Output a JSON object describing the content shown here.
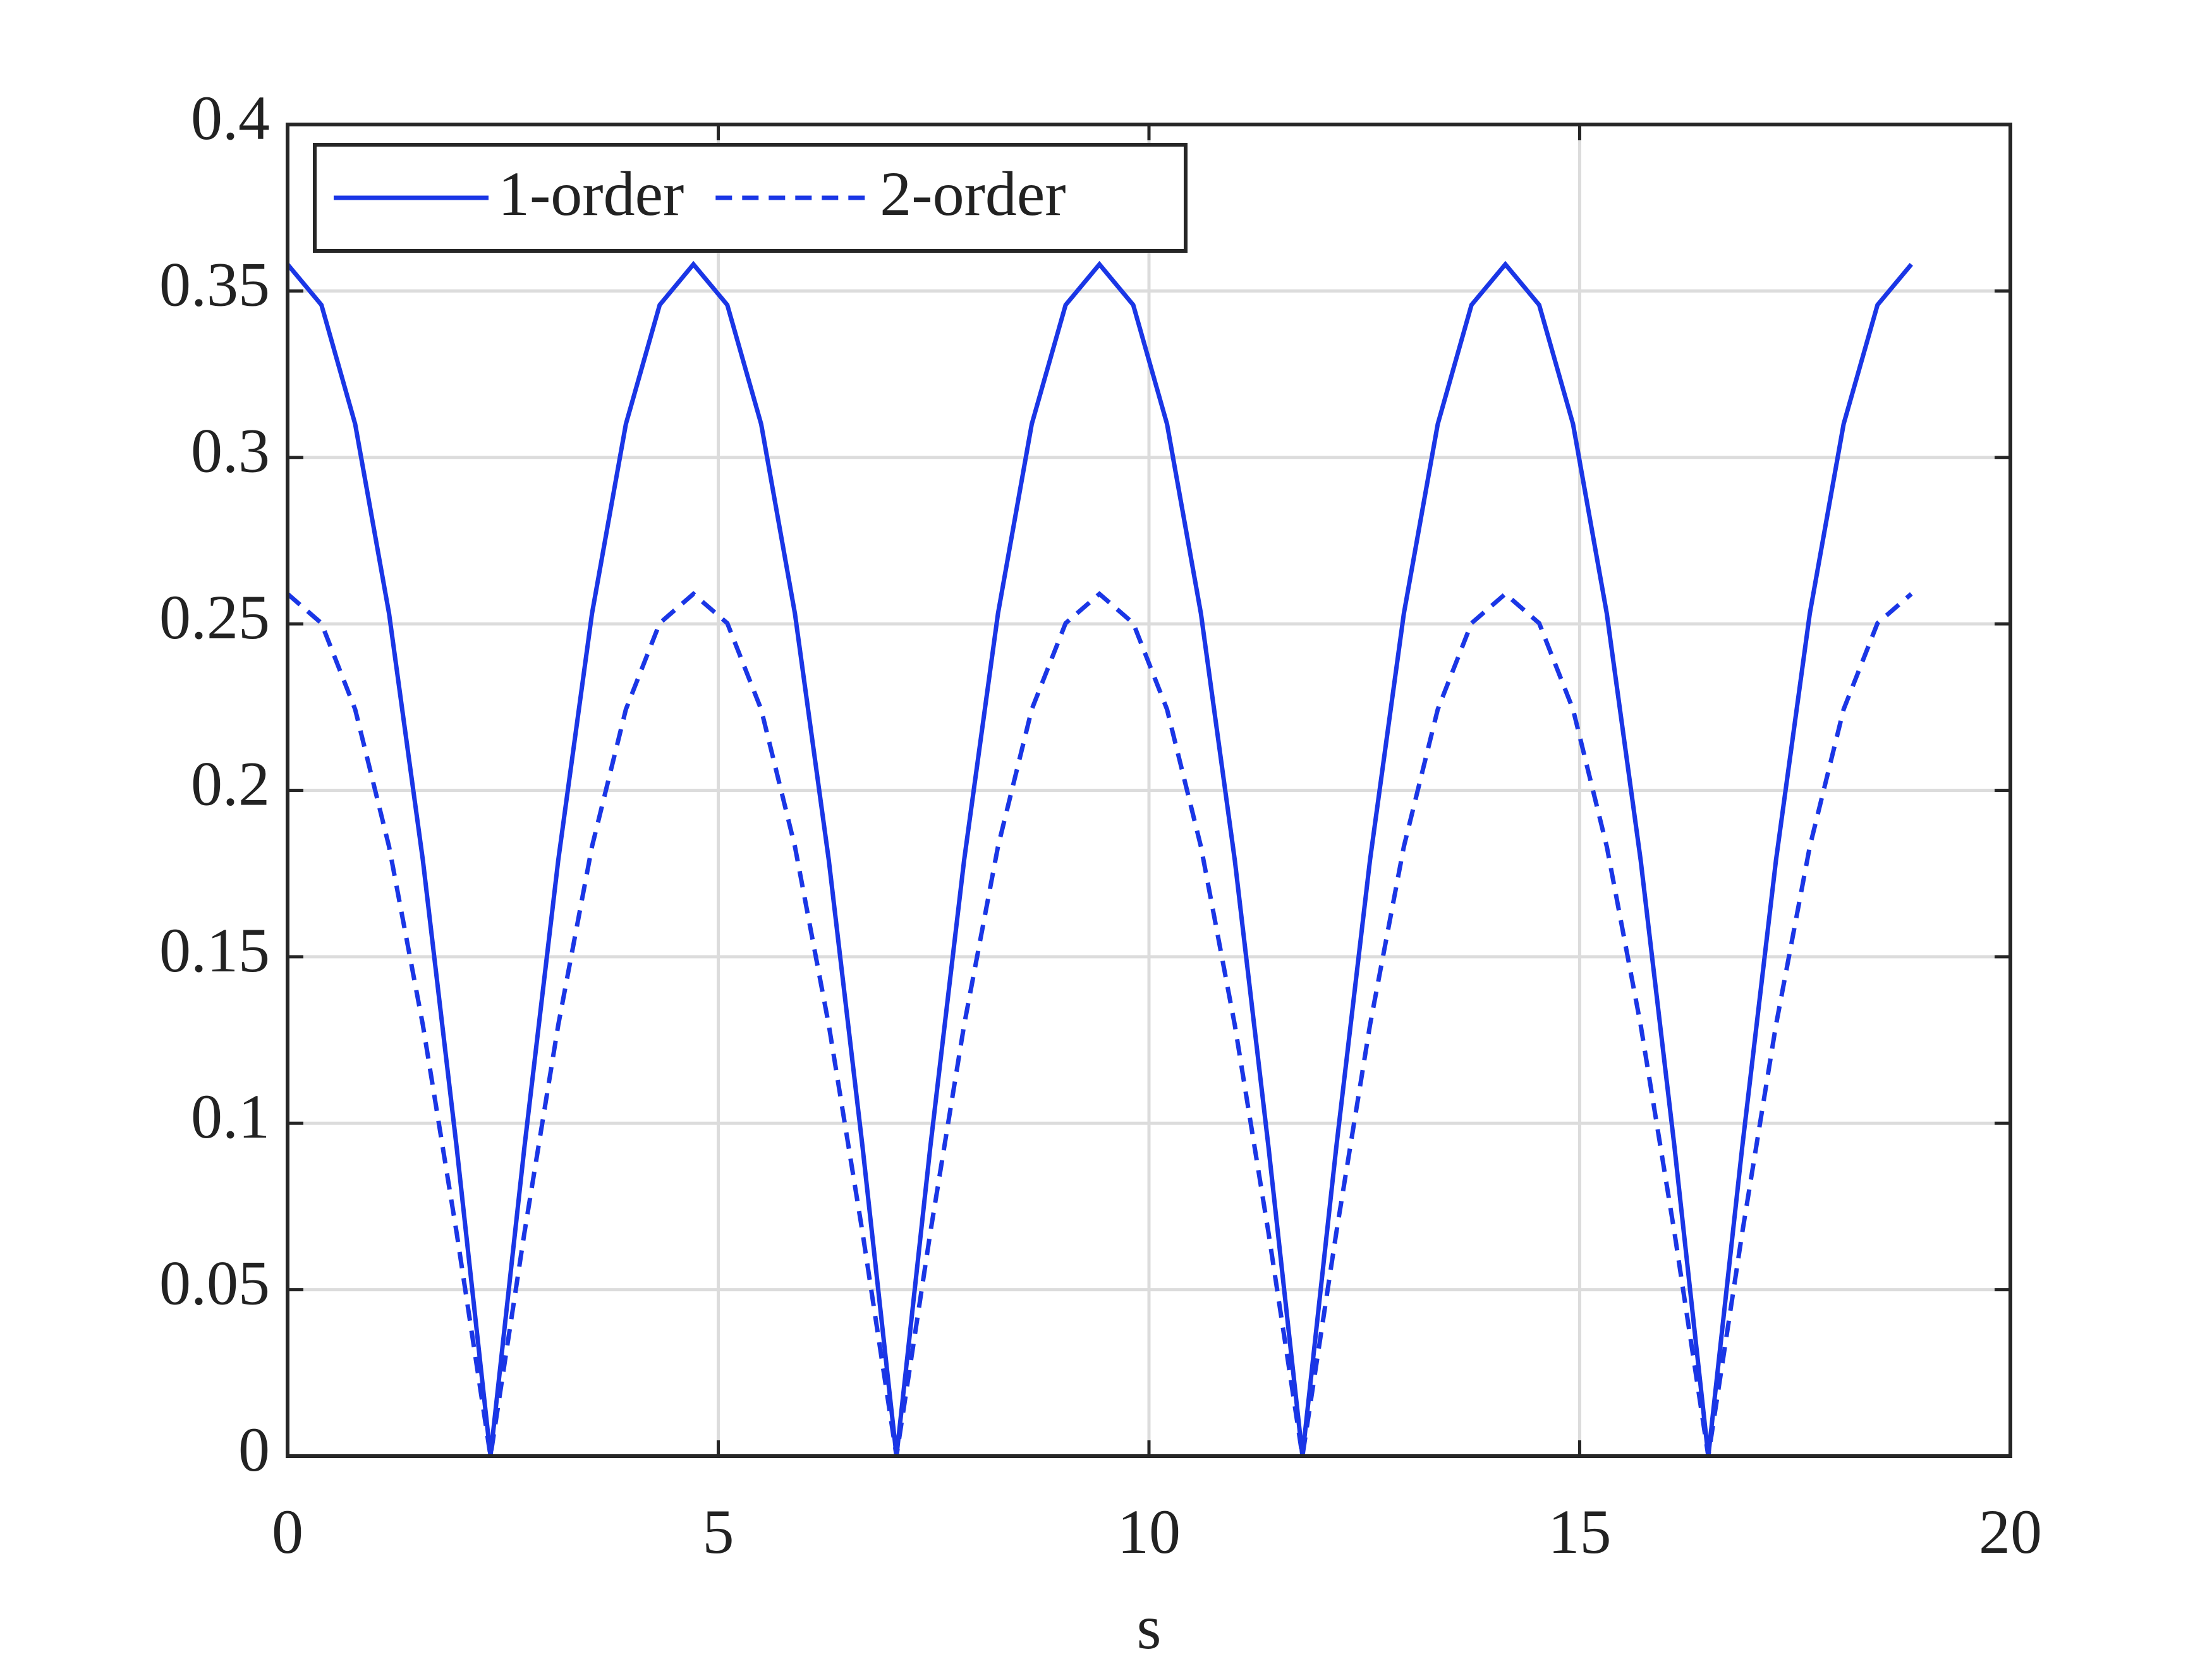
{
  "chart_data": {
    "type": "line",
    "xlabel": "s",
    "x": [
      0,
      0.393,
      0.785,
      1.178,
      1.571,
      1.963,
      2.356,
      2.749,
      3.142,
      3.534,
      3.927,
      4.32,
      4.712,
      5.105,
      5.498,
      5.89,
      6.283,
      6.676,
      7.069,
      7.461,
      7.854,
      8.247,
      8.639,
      9.032,
      9.425,
      9.817,
      10.21,
      10.603,
      10.996,
      11.388,
      11.781,
      12.174,
      12.566,
      12.959,
      13.352,
      13.744,
      14.137,
      14.53,
      14.923,
      15.315,
      15.708,
      16.101,
      16.493,
      16.886,
      17.279,
      17.671,
      18.064,
      18.457,
      18.85
    ],
    "series": [
      {
        "name": "1-order",
        "color": "#1a36e6",
        "dash": "solid",
        "values": [
          0.358,
          0.3458,
          0.31,
          0.2531,
          0.179,
          0.0927,
          0,
          0.0927,
          0.179,
          0.2531,
          0.31,
          0.3458,
          0.358,
          0.3458,
          0.31,
          0.2531,
          0.179,
          0.0927,
          0,
          0.0927,
          0.179,
          0.2531,
          0.31,
          0.3458,
          0.358,
          0.3458,
          0.31,
          0.2531,
          0.179,
          0.0927,
          0,
          0.0927,
          0.179,
          0.2531,
          0.31,
          0.3458,
          0.358,
          0.3458,
          0.31,
          0.2531,
          0.179,
          0.0927,
          0,
          0.0927,
          0.179,
          0.2531,
          0.31,
          0.3458,
          0.358
        ]
      },
      {
        "name": "2-order",
        "color": "#1a36e6",
        "dash": "dashed",
        "values": [
          0.259,
          0.2502,
          0.2243,
          0.1831,
          0.1295,
          0.067,
          0,
          0.067,
          0.1295,
          0.1831,
          0.2243,
          0.2502,
          0.259,
          0.2502,
          0.2243,
          0.1831,
          0.1295,
          0.067,
          0,
          0.067,
          0.1295,
          0.1831,
          0.2243,
          0.2502,
          0.259,
          0.2502,
          0.2243,
          0.1831,
          0.1295,
          0.067,
          0,
          0.067,
          0.1295,
          0.1831,
          0.2243,
          0.2502,
          0.259,
          0.2502,
          0.2243,
          0.1831,
          0.1295,
          0.067,
          0,
          0.067,
          0.1295,
          0.1831,
          0.2243,
          0.2502,
          0.259
        ]
      }
    ],
    "xlim": [
      0,
      20
    ],
    "xticks": [
      0,
      5,
      10,
      15,
      20
    ],
    "ylim": [
      0,
      0.4
    ],
    "yticks": [
      0,
      0.05,
      0.1,
      0.15,
      0.2,
      0.25,
      0.3,
      0.35,
      0.4
    ],
    "grid": true,
    "legend": "upper left"
  }
}
